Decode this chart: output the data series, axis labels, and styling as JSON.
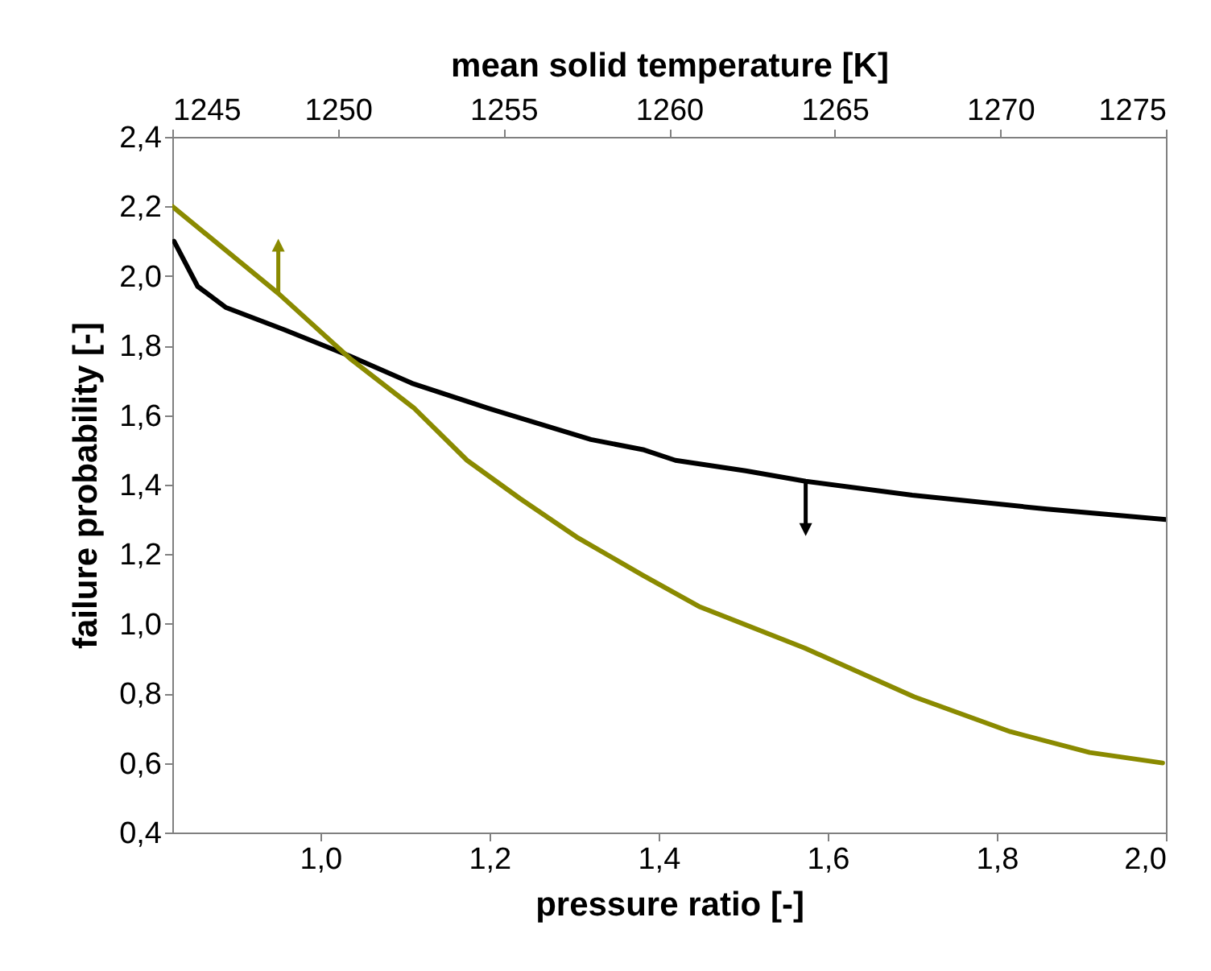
{
  "chart_data": {
    "type": "line",
    "xlabel": "pressure ratio [-]",
    "x2label": "mean solid temperature [K]",
    "ylabel": "failure probability [-]",
    "xlim": [
      0.825,
      2.0
    ],
    "xticks": [
      {
        "value": 1.0,
        "label": "1,0"
      },
      {
        "value": 1.2,
        "label": "1,2"
      },
      {
        "value": 1.4,
        "label": "1,4"
      },
      {
        "value": 1.6,
        "label": "1,6"
      },
      {
        "value": 1.8,
        "label": "1,8"
      },
      {
        "value": 2.0,
        "label": "2,0"
      }
    ],
    "x2lim": [
      1245,
      1275
    ],
    "x2ticks": [
      1245,
      1250,
      1255,
      1260,
      1265,
      1270,
      1275
    ],
    "ylim": [
      0.4,
      2.4
    ],
    "yticks": [
      {
        "value": 0.4,
        "label": "0,4"
      },
      {
        "value": 0.6,
        "label": "0,6"
      },
      {
        "value": 0.8,
        "label": "0,8"
      },
      {
        "value": 1.0,
        "label": "1,0"
      },
      {
        "value": 1.2,
        "label": "1,2"
      },
      {
        "value": 1.4,
        "label": "1,4"
      },
      {
        "value": 1.6,
        "label": "1,6"
      },
      {
        "value": 1.8,
        "label": "1,8"
      },
      {
        "value": 2.0,
        "label": "2,0"
      },
      {
        "value": 2.2,
        "label": "2,2"
      },
      {
        "value": 2.4,
        "label": "2,4"
      }
    ],
    "series": [
      {
        "color": "#000000",
        "x": [
          0.827,
          0.855,
          0.888,
          0.958,
          1.035,
          1.11,
          1.198,
          1.32,
          1.383,
          1.42,
          1.503,
          1.574,
          1.7,
          1.859,
          2.0
        ],
        "values": [
          2.1,
          1.97,
          1.91,
          1.845,
          1.77,
          1.69,
          1.62,
          1.53,
          1.5,
          1.47,
          1.44,
          1.41,
          1.37,
          1.33,
          1.3
        ]
      },
      {
        "color": "#8a8a00",
        "axis": "x2",
        "x": [
          1245,
          1248.2,
          1250.4,
          1252.3,
          1253.9,
          1255.5,
          1257.2,
          1259.2,
          1260.9,
          1264.1,
          1267.4,
          1270.3,
          1272.7,
          1274.9
        ],
        "values": [
          2.2,
          1.95,
          1.76,
          1.62,
          1.47,
          1.36,
          1.25,
          1.14,
          1.05,
          0.93,
          0.79,
          0.69,
          0.63,
          0.6
        ]
      }
    ]
  }
}
